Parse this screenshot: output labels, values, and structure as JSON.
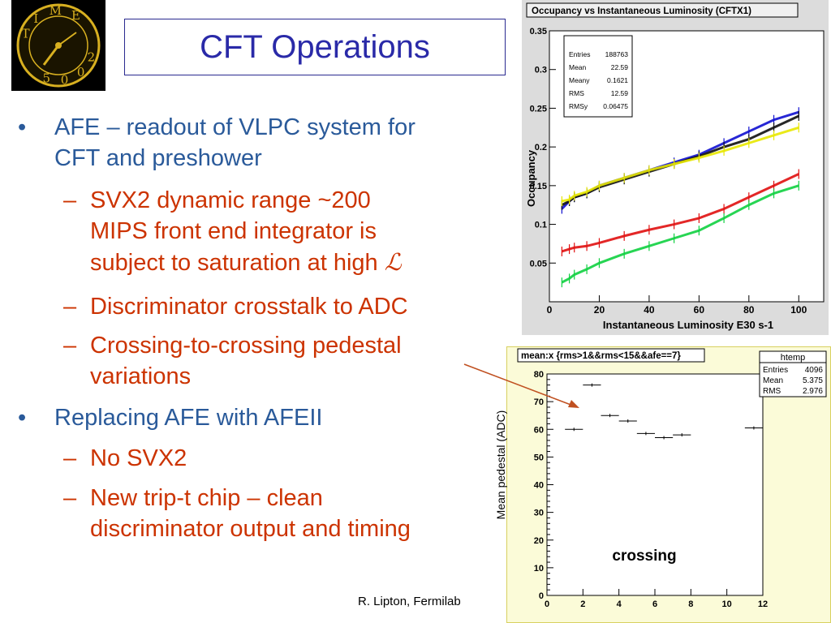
{
  "slide": {
    "title": "CFT Operations",
    "bullets": [
      {
        "level": 1,
        "lines": [
          "AFE – readout of VLPC system for",
          "CFT and preshower"
        ]
      },
      {
        "level": 2,
        "lines": [
          "SVX2 dynamic range ~200",
          "MIPS front end integrator is",
          "subject to saturation at high"
        ],
        "luminosity_symbol": "ℒ"
      },
      {
        "level": 2,
        "lines": [
          "Discriminator crosstalk to ADC"
        ]
      },
      {
        "level": 2,
        "lines": [
          "Crossing-to-crossing pedestal",
          "variations"
        ]
      },
      {
        "level": 1,
        "lines": [
          "Replacing AFE with AFEII"
        ]
      },
      {
        "level": 2,
        "lines": [
          "No SVX2"
        ]
      },
      {
        "level": 2,
        "lines": [
          "New trip-t chip – clean",
          "discriminator output and timing"
        ]
      }
    ],
    "bullet_marks": {
      "level1": "•",
      "level2": "–"
    },
    "footer": "R. Lipton, Fermilab",
    "logo": {
      "letters": [
        "T",
        "I",
        "M",
        "E",
        "2",
        "0",
        "0",
        "5"
      ]
    },
    "colors": {
      "title": "#2a2aa8",
      "level1": "#2a5a9a",
      "level2": "#cc3300",
      "arrow": "#c05020"
    }
  },
  "chart_data": [
    {
      "type": "scatter",
      "title": "Occupancy vs Instantaneous Luminosity (CFTX1)",
      "xlabel": "Instantaneous Luminosity E30 s-1",
      "ylabel": "Occupancy",
      "xlim": [
        0,
        110
      ],
      "ylim": [
        0,
        0.35
      ],
      "xticks": [
        "0",
        "20",
        "40",
        "60",
        "80",
        "100"
      ],
      "yticks": [
        "0.05",
        "0.1",
        "0.15",
        "0.2",
        "0.25",
        "0.3",
        "0.35"
      ],
      "stats": [
        {
          "label": "Entries",
          "value": "188763"
        },
        {
          "label": "Mean",
          "value": "22.59"
        },
        {
          "label": "Meany",
          "value": "0.1621"
        },
        {
          "label": "RMS",
          "value": "12.59"
        },
        {
          "label": "RMSy",
          "value": "0.06475"
        }
      ],
      "series": [
        {
          "color": "#1010d0",
          "x": [
            5,
            8,
            10,
            15,
            20,
            30,
            40,
            50,
            60,
            70,
            80,
            90,
            100
          ],
          "y": [
            0.12,
            0.13,
            0.135,
            0.14,
            0.15,
            0.16,
            0.17,
            0.18,
            0.19,
            0.205,
            0.22,
            0.235,
            0.245
          ]
        },
        {
          "color": "#101010",
          "x": [
            5,
            8,
            10,
            15,
            20,
            30,
            40,
            50,
            60,
            70,
            80,
            90,
            100
          ],
          "y": [
            0.125,
            0.13,
            0.135,
            0.14,
            0.148,
            0.158,
            0.168,
            0.178,
            0.188,
            0.2,
            0.21,
            0.225,
            0.24
          ]
        },
        {
          "color": "#e8e800",
          "x": [
            5,
            8,
            10,
            15,
            20,
            30,
            40,
            50,
            60,
            70,
            80,
            90,
            100
          ],
          "y": [
            0.13,
            0.132,
            0.137,
            0.142,
            0.15,
            0.16,
            0.17,
            0.178,
            0.186,
            0.195,
            0.205,
            0.215,
            0.225
          ]
        },
        {
          "color": "#e01010",
          "x": [
            5,
            8,
            10,
            15,
            20,
            30,
            40,
            50,
            60,
            70,
            80,
            90,
            100
          ],
          "y": [
            0.065,
            0.068,
            0.07,
            0.072,
            0.076,
            0.085,
            0.093,
            0.1,
            0.108,
            0.12,
            0.135,
            0.15,
            0.165
          ]
        },
        {
          "color": "#10d040",
          "x": [
            5,
            8,
            10,
            15,
            20,
            30,
            40,
            50,
            60,
            70,
            80,
            90,
            100
          ],
          "y": [
            0.025,
            0.03,
            0.035,
            0.042,
            0.05,
            0.062,
            0.072,
            0.082,
            0.092,
            0.108,
            0.125,
            0.14,
            0.15
          ]
        }
      ]
    },
    {
      "type": "scatter",
      "title": "mean:x {rms>1&&rms<15&&afe==7}",
      "ylabel": "Mean pedestal (ADC)",
      "xlim": [
        0,
        12
      ],
      "ylim": [
        0,
        80
      ],
      "xticks": [
        "0",
        "2",
        "4",
        "6",
        "8",
        "10",
        "12"
      ],
      "yticks": [
        "0",
        "10",
        "20",
        "30",
        "40",
        "50",
        "60",
        "70",
        "80"
      ],
      "annotation": "crossing",
      "stats_title": "htemp",
      "stats": [
        {
          "label": "Entries",
          "value": "4096"
        },
        {
          "label": "Mean",
          "value": "5.375"
        },
        {
          "label": "RMS",
          "value": "2.976"
        }
      ],
      "x": [
        1.5,
        2.5,
        3.5,
        4.5,
        5.5,
        6.5,
        7.5,
        11.5
      ],
      "y": [
        60,
        76,
        65,
        63,
        58.5,
        57,
        58,
        60.5
      ]
    }
  ]
}
